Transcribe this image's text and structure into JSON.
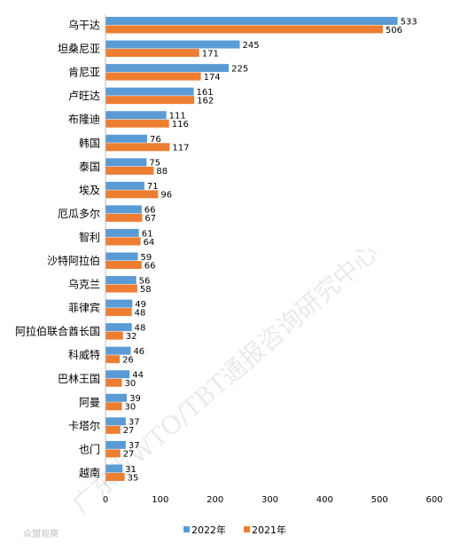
{
  "chart_data": {
    "type": "bar",
    "orientation": "horizontal",
    "categories": [
      "乌干达",
      "坦桑尼亚",
      "肯尼亚",
      "卢旺达",
      "布隆迪",
      "韩国",
      "泰国",
      "埃及",
      "厄瓜多尔",
      "智利",
      "沙特阿拉伯",
      "乌克兰",
      "菲律宾",
      "阿拉伯联合酋长国",
      "科威特",
      "巴林王国",
      "阿曼",
      "卡塔尔",
      "也门",
      "越南"
    ],
    "series": [
      {
        "name": "2022年",
        "color": "#5B9BD5",
        "values": [
          533,
          245,
          225,
          161,
          111,
          76,
          75,
          71,
          66,
          61,
          59,
          56,
          49,
          48,
          46,
          44,
          39,
          37,
          37,
          31
        ]
      },
      {
        "name": "2021年",
        "color": "#ED7D31",
        "values": [
          506,
          171,
          174,
          162,
          116,
          117,
          88,
          96,
          67,
          64,
          66,
          58,
          48,
          32,
          26,
          30,
          30,
          27,
          27,
          35
        ]
      }
    ],
    "xlim": [
      0,
      600
    ],
    "xticks": [
      0,
      100,
      200,
      300,
      400,
      500,
      600
    ],
    "legend_position": "bottom",
    "grid": false
  },
  "watermark": "广东省WTO/TBT通报咨询研究中心",
  "brand": "众盟观察"
}
